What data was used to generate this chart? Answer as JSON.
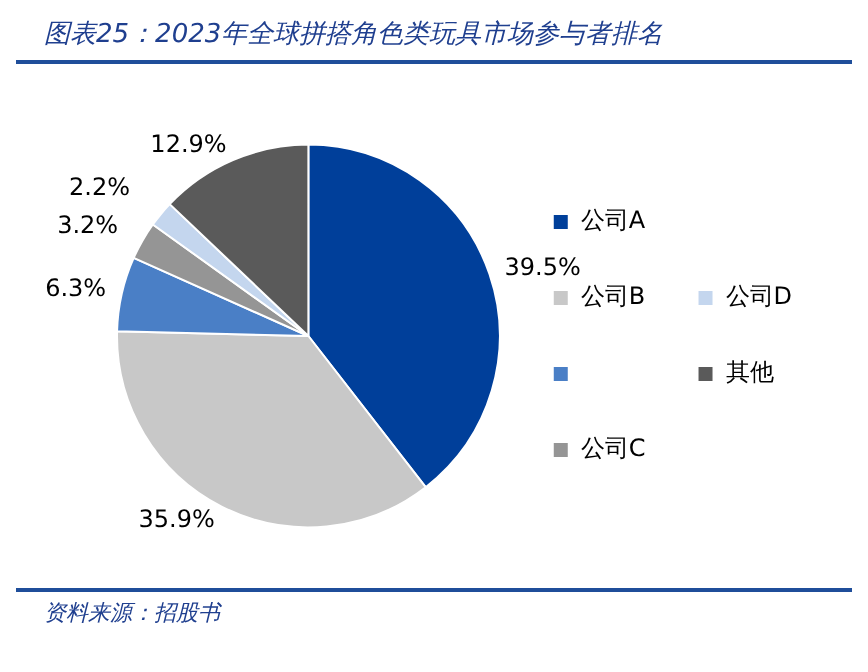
{
  "chart_data": {
    "type": "pie",
    "title": "图表25：2023年全球拼搭角色类玩具市场参与者排名",
    "categories": [
      "公司A",
      "公司B",
      null,
      "公司C",
      "公司D",
      "其他"
    ],
    "values": [
      39.5,
      35.9,
      6.3,
      3.2,
      2.2,
      12.9
    ],
    "value_labels": [
      "39.5%",
      "35.9%",
      "6.3%",
      "3.2%",
      "2.2%",
      "12.9%"
    ],
    "colors": [
      "#003f9a",
      "#c8c8c8",
      "#4a7fc6",
      "#959595",
      "#c4d6ee",
      "#5a5a5a"
    ],
    "legend": "right",
    "annotations": [
      "资料来源：招股书"
    ]
  }
}
